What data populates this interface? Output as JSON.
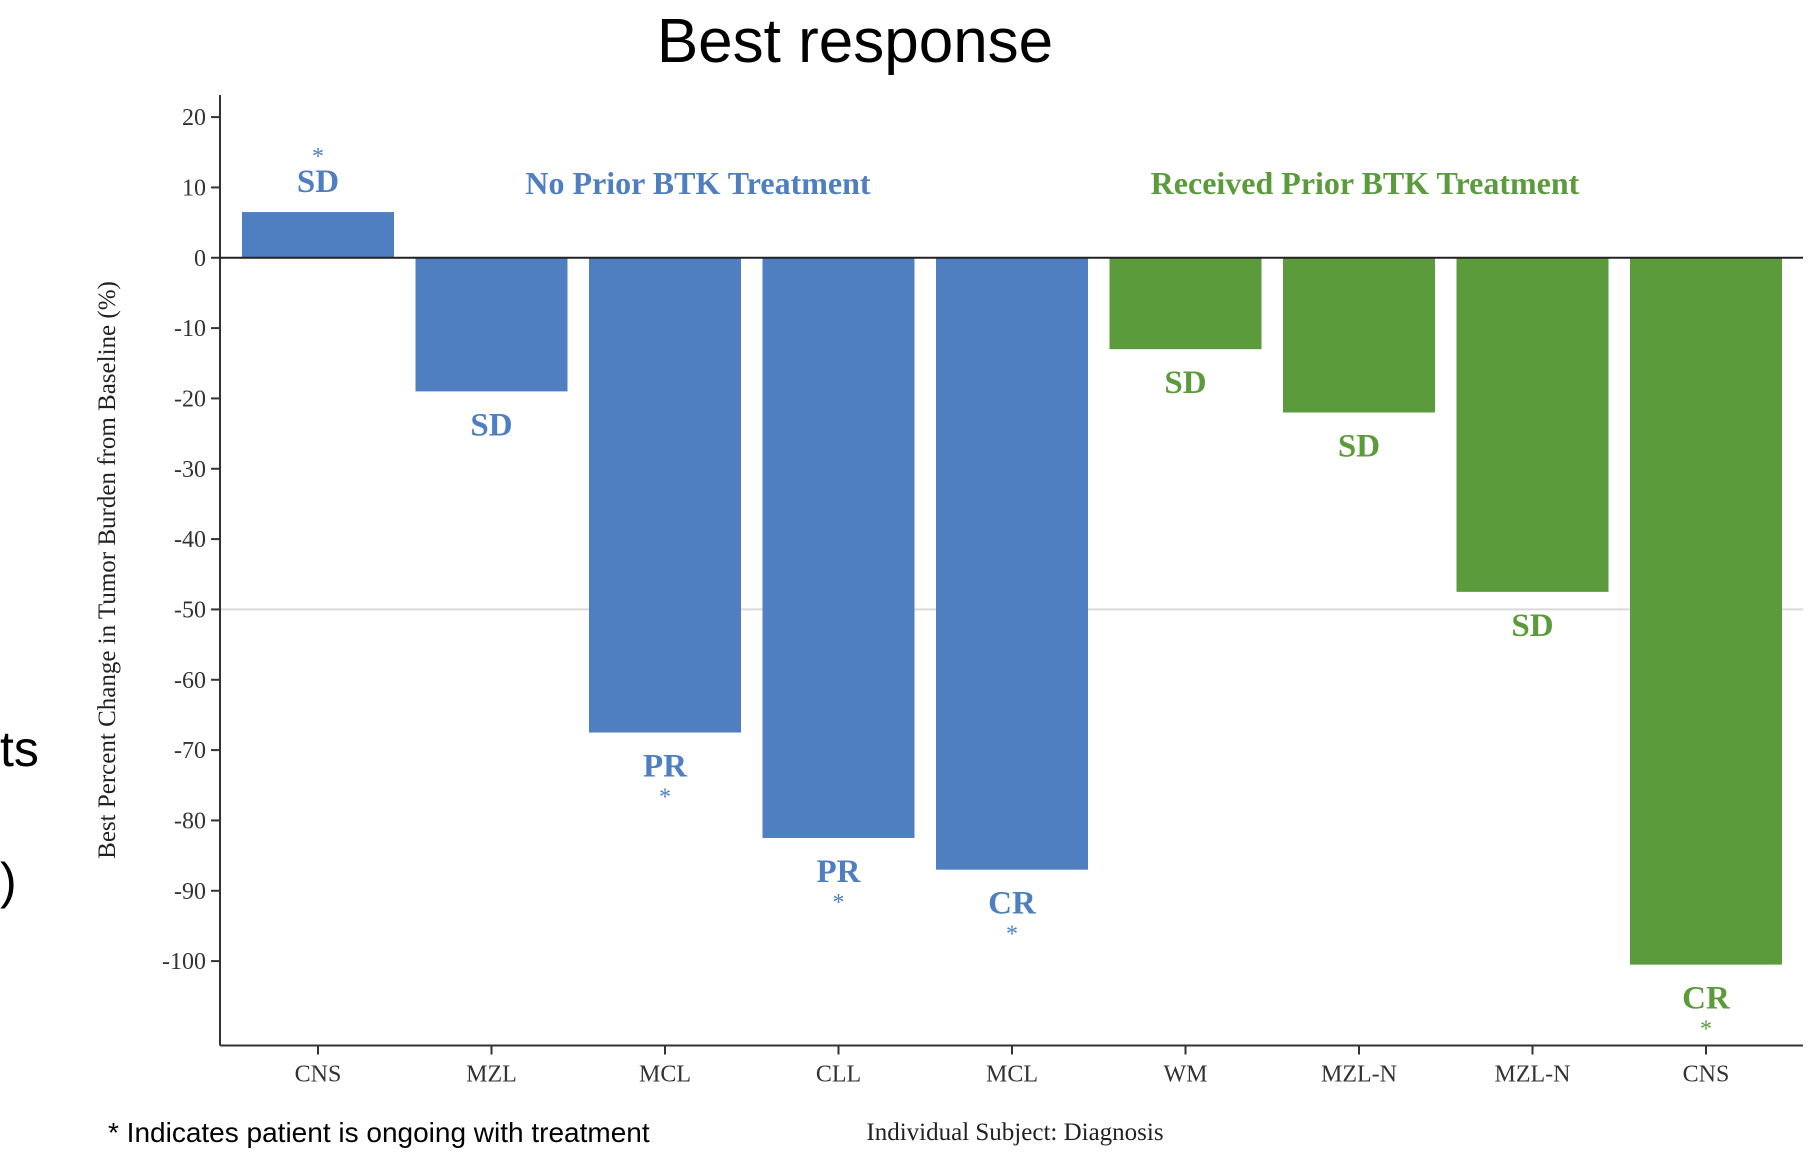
{
  "edge_fragments": [
    "ts",
    ")"
  ],
  "footnote": "* Indicates patient is ongoing with treatment",
  "chart_data": {
    "type": "bar",
    "title": "Best response",
    "ylabel": "Best Percent Change in Tumor Burden from Baseline (%)",
    "xlabel": "Individual Subject: Diagnosis",
    "ylim": [
      -112,
      23
    ],
    "yticks": [
      20,
      10,
      0,
      -10,
      -20,
      -30,
      -40,
      -50,
      -60,
      -70,
      -80,
      -90,
      -100
    ],
    "reference_line": -50,
    "grid": false,
    "colors": {
      "no_prior": "#4f7fc0",
      "prior": "#5b9b3c"
    },
    "groups": [
      {
        "label": "No Prior BTK Treatment",
        "color": "#4f7fc0"
      },
      {
        "label": "Received Prior BTK Treatment",
        "color": "#5b9b3c"
      }
    ],
    "categories": [
      "CNS",
      "MZL",
      "MCL",
      "CLL",
      "MCL",
      "WM",
      "MZL-N",
      "MZL-N",
      "CNS"
    ],
    "values": [
      6.5,
      -19,
      -67.5,
      -82.5,
      -87,
      -13,
      -22,
      -47.5,
      -100.5
    ],
    "group_index": [
      0,
      0,
      0,
      0,
      0,
      1,
      1,
      1,
      1
    ],
    "responses": [
      "SD",
      "SD",
      "PR",
      "PR",
      "CR",
      "SD",
      "SD",
      "SD",
      "CR"
    ],
    "ongoing": [
      true,
      false,
      true,
      true,
      true,
      false,
      false,
      false,
      true
    ],
    "ongoing_marker": "*"
  }
}
